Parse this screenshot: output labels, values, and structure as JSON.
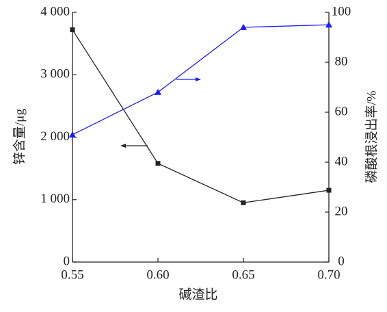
{
  "chart_data": {
    "type": "line",
    "x_label": "碱渣比",
    "y_label": "锌含量/μg",
    "y2_label": "磷酸根浸出率/%",
    "x": [
      0.55,
      0.6,
      0.65,
      0.7
    ],
    "xlim": [
      0.55,
      0.7
    ],
    "xticks": [
      0.55,
      {
        "value": 0.6,
        "label": "0.60"
      },
      0.65,
      {
        "value": 0.7,
        "label": "0.70"
      }
    ],
    "ylim": [
      0,
      4000
    ],
    "yticks": [
      0,
      {
        "value": 1000,
        "label": "1 000"
      },
      {
        "value": 2000,
        "label": "2 000"
      },
      {
        "value": 3000,
        "label": "3 000"
      },
      {
        "value": 4000,
        "label": "4 000"
      }
    ],
    "y2lim": [
      0,
      100
    ],
    "y2ticks": [
      0,
      20,
      40,
      60,
      80,
      100
    ],
    "series": [
      {
        "color": "#222222",
        "marker": "square",
        "values": [
          3720,
          1580,
          950,
          1150
        ]
      },
      {
        "color": "#1a1aff",
        "marker": "triangle",
        "axis": "y2",
        "values": [
          51,
          68,
          94,
          95
        ]
      }
    ]
  }
}
